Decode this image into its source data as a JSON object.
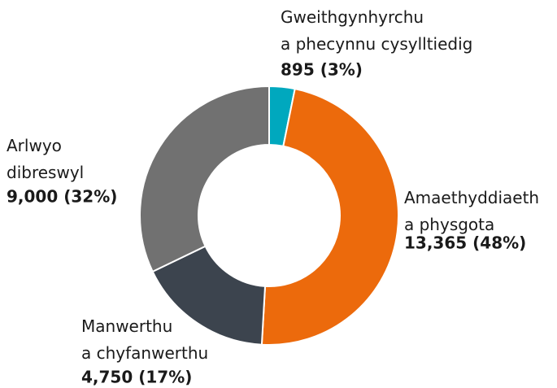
{
  "chart_data": {
    "type": "donut",
    "categories": [
      "Gweithgynhyrchu a phecynnu cysylltiedig",
      "Amaethyddiaeth a physgota",
      "Manwerthu a chyfanwerthu",
      "Arlwyo dibreswyl"
    ],
    "values": [
      895,
      13365,
      4750,
      9000
    ],
    "value_labels": [
      "895 (3%)",
      "13,365 (48%)",
      "4,750 (17%)",
      "9,000 (32%)"
    ],
    "colors": [
      "#00a8be",
      "#ec6a0c",
      "#3c444e",
      "#717171"
    ]
  }
}
